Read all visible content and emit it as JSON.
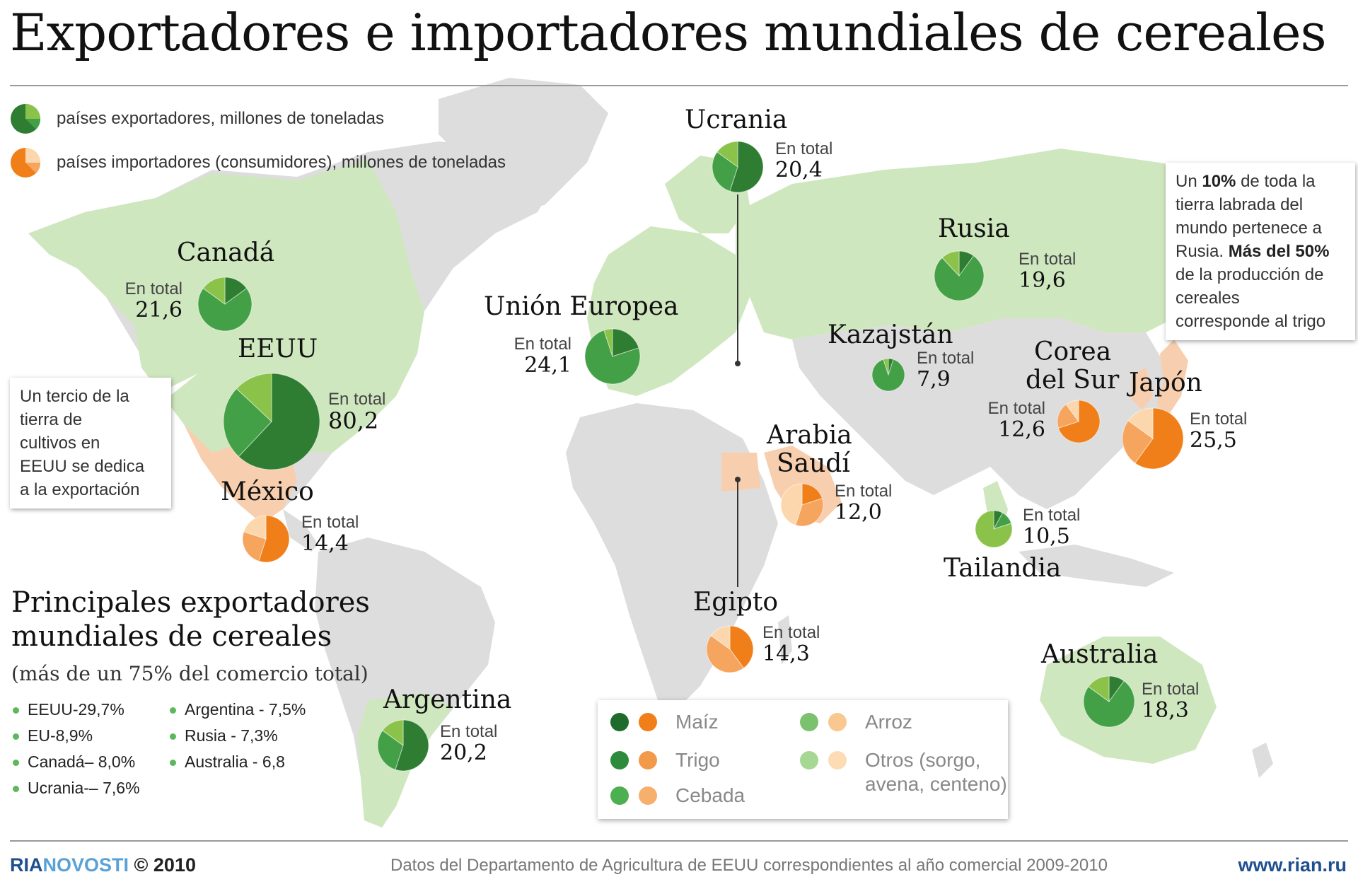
{
  "title": "Exportadores e importadores mundiales de cereales",
  "legend": {
    "exporters": "países exportadores, millones de toneladas",
    "importers": "países importadores (consumidores), millones de toneladas"
  },
  "colors": {
    "export_dark": "#2e7d32",
    "export_mid": "#43a047",
    "export_light": "#8bc34a",
    "import_dark": "#f07f19",
    "import_mid": "#f6a55e",
    "import_light": "#fcd7ad",
    "map_land": "#dddddd",
    "map_export_land": "#cfe7bf",
    "map_import_land": "#f8cfae"
  },
  "total_label": "En total",
  "countries": [
    {
      "id": "ucrania",
      "name": "Ucrania",
      "total": "20,4",
      "role": "export"
    },
    {
      "id": "canada",
      "name": "Canadá",
      "total": "21,6",
      "role": "export"
    },
    {
      "id": "eeuu",
      "name": "EEUU",
      "total": "80,2",
      "role": "export"
    },
    {
      "id": "mexico",
      "name": "México",
      "total": "14,4",
      "role": "import"
    },
    {
      "id": "ue",
      "name": "Unión Europea",
      "total": "24,1",
      "role": "export"
    },
    {
      "id": "rusia",
      "name": "Rusia",
      "total": "19,6",
      "role": "export"
    },
    {
      "id": "kazajstan",
      "name": "Kazajstán",
      "total": "7,9",
      "role": "export"
    },
    {
      "id": "corea1",
      "name": "Corea",
      "total": "",
      "role": "import"
    },
    {
      "id": "corea2",
      "name": "del Sur",
      "total": "12,6",
      "role": "import"
    },
    {
      "id": "japon",
      "name": "Japón",
      "total": "25,5",
      "role": "import"
    },
    {
      "id": "arabia1",
      "name": "Arabia",
      "total": "",
      "role": "import"
    },
    {
      "id": "arabia2",
      "name": "Saudí",
      "total": "12,0",
      "role": "import"
    },
    {
      "id": "tailandia",
      "name": "Tailandia",
      "total": "10,5",
      "role": "export"
    },
    {
      "id": "egipto",
      "name": "Egipto",
      "total": "14,3",
      "role": "import"
    },
    {
      "id": "australia",
      "name": "Australia",
      "total": "18,3",
      "role": "export"
    },
    {
      "id": "argentina",
      "name": "Argentina",
      "total": "20,2",
      "role": "export"
    }
  ],
  "callouts": {
    "eeuu": [
      "Un tercio de la",
      "tierra de",
      "cultivos en",
      "EEUU se dedica",
      "a la exportación"
    ],
    "rusia": {
      "l1a": "Un ",
      "l1b": "10%",
      "l1c": " de toda la",
      "l2": "tierra labrada del",
      "l3": "mundo pertenece a",
      "l4a": "Rusia. ",
      "l4b": "Más del 50%",
      "l5": "de la producción de",
      "l6": "cereales",
      "l7": "corresponde al trigo"
    }
  },
  "exporters_panel": {
    "title_line1": "Principales exportadores",
    "title_line2": "mundiales de cereales",
    "subtitle": "(más de un 75% del comercio total)",
    "items_left": [
      "EEUU-29,7%",
      "EU-8,9%",
      "Canadá– 8,0%",
      "Ucrania-– 7,6%"
    ],
    "items_right": [
      "Argentina - 7,5%",
      "Rusia - 7,3%",
      "Australia - 6,8"
    ]
  },
  "crop_legend": {
    "maiz": "Maíz",
    "trigo": "Trigo",
    "cebada": "Cebada",
    "arroz": "Arroz",
    "otros_1": "Otros (sorgo,",
    "otros_2": "avena, centeno)"
  },
  "footer": {
    "brand_a": "RIA",
    "brand_b": "NOVOSTI",
    "copyright": " © 2010",
    "source": "Datos del Departamento de Agricultura de EEUU correspondientes al año comercial 2009-2010",
    "url": "www.rian.ru"
  }
}
